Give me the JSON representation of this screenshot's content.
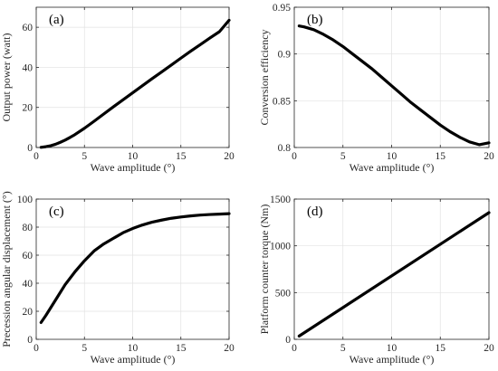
{
  "chart_data": [
    {
      "type": "line",
      "panel_label": "(a)",
      "xlabel": "Wave amplitude (°)",
      "ylabel": "Output power (watt)",
      "xlim": [
        0,
        20
      ],
      "ylim": [
        0,
        70
      ],
      "xticks": [
        0,
        5,
        10,
        15,
        20
      ],
      "yticks": [
        0,
        20,
        40,
        60
      ],
      "grid": true,
      "series": [
        {
          "x": [
            0.5,
            1,
            1.5,
            2,
            2.5,
            3,
            3.5,
            4,
            5,
            6,
            7,
            8,
            9,
            10,
            11,
            12,
            13,
            14,
            15,
            16,
            17,
            18,
            19,
            20
          ],
          "y": [
            0.1,
            0.4,
            0.9,
            1.6,
            2.6,
            3.7,
            5.0,
            6.4,
            9.6,
            13.1,
            16.7,
            20.3,
            23.8,
            27.3,
            30.8,
            34.3,
            37.7,
            41.1,
            44.6,
            48.0,
            51.3,
            54.6,
            57.8,
            63.5
          ]
        }
      ]
    },
    {
      "type": "line",
      "panel_label": "(b)",
      "xlabel": "Wave amplitude (°)",
      "ylabel": "Conversion efficiency",
      "xlim": [
        0,
        20
      ],
      "ylim": [
        0.8,
        0.95
      ],
      "xticks": [
        0,
        5,
        10,
        15,
        20
      ],
      "yticks": [
        0.8,
        0.85,
        0.9,
        0.95
      ],
      "grid": true,
      "series": [
        {
          "x": [
            0.5,
            1,
            2,
            3,
            4,
            5,
            6,
            7,
            8,
            9,
            10,
            11,
            12,
            13,
            14,
            15,
            16,
            17,
            18,
            19,
            20
          ],
          "y": [
            0.93,
            0.929,
            0.926,
            0.921,
            0.915,
            0.908,
            0.9,
            0.892,
            0.884,
            0.875,
            0.866,
            0.857,
            0.848,
            0.84,
            0.832,
            0.824,
            0.817,
            0.811,
            0.806,
            0.803,
            0.805
          ]
        }
      ]
    },
    {
      "type": "line",
      "panel_label": "(c)",
      "xlabel": "Wave amplitude (°)",
      "ylabel": "Precession angular displacement (°)",
      "xlim": [
        0,
        20
      ],
      "ylim": [
        0,
        100
      ],
      "xticks": [
        0,
        5,
        10,
        15,
        20
      ],
      "yticks": [
        0,
        20,
        40,
        60,
        80,
        100
      ],
      "grid": true,
      "series": [
        {
          "x": [
            0.5,
            1,
            2,
            3,
            4,
            5,
            6,
            7,
            8,
            9,
            10,
            11,
            12,
            13,
            14,
            15,
            16,
            17,
            18,
            19,
            20
          ],
          "y": [
            12,
            17,
            28,
            39,
            48,
            56,
            63,
            68,
            72,
            76,
            79,
            81.5,
            83.5,
            85,
            86.3,
            87.2,
            88,
            88.6,
            89,
            89.3,
            89.6
          ]
        }
      ]
    },
    {
      "type": "line",
      "panel_label": "(d)",
      "xlabel": "Wave amplitude (°)",
      "ylabel": "Platform counter torque (Nm)",
      "xlim": [
        0,
        20
      ],
      "ylim": [
        0,
        1500
      ],
      "xticks": [
        0,
        5,
        10,
        15,
        20
      ],
      "yticks": [
        0,
        500,
        1000,
        1500
      ],
      "grid": true,
      "series": [
        {
          "x": [
            0.5,
            20
          ],
          "y": [
            35,
            1355
          ]
        }
      ]
    }
  ]
}
